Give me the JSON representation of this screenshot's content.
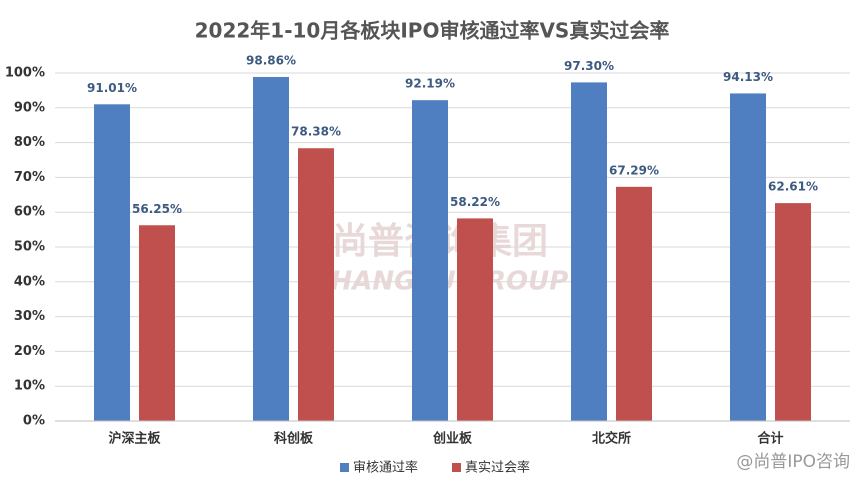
{
  "chart_data": {
    "type": "bar",
    "title": "2022年1-10月各板块IPO审核通过率VS真实过会率",
    "categories": [
      "沪深主板",
      "科创板",
      "创业板",
      "北交所",
      "合计"
    ],
    "series": [
      {
        "name": "审核通过率",
        "color": "#4f7fc0",
        "values": [
          91.01,
          98.86,
          92.19,
          97.3,
          94.13
        ],
        "value_labels": [
          "91.01%",
          "98.86%",
          "92.19%",
          "97.30%",
          "94.13%"
        ]
      },
      {
        "name": "真实过会率",
        "color": "#c0504d",
        "values": [
          56.25,
          78.38,
          58.22,
          67.29,
          62.61
        ],
        "value_labels": [
          "56.25%",
          "78.38%",
          "58.22%",
          "67.29%",
          "62.61%"
        ]
      }
    ],
    "ylim": [
      0,
      100
    ],
    "yticks": [
      {
        "value": 0,
        "label": "0%"
      },
      {
        "value": 10,
        "label": "10%"
      },
      {
        "value": 20,
        "label": "20%"
      },
      {
        "value": 30,
        "label": "30%"
      },
      {
        "value": 40,
        "label": "40%"
      },
      {
        "value": 50,
        "label": "50%"
      },
      {
        "value": 60,
        "label": "60%"
      },
      {
        "value": 70,
        "label": "70%"
      },
      {
        "value": 80,
        "label": "80%"
      },
      {
        "value": 90,
        "label": "90%"
      },
      {
        "value": 100,
        "label": "100%"
      }
    ],
    "grid": true,
    "legend": "bottom",
    "annotations": [
      "尚普咨询集团",
      "SHANGPU GROUP",
      "@尚普IPO咨询"
    ]
  }
}
